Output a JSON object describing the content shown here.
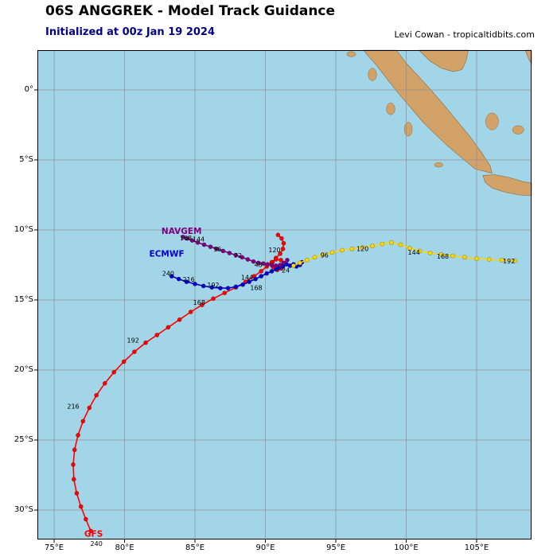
{
  "header": {
    "title": "06S ANGGREK - Model Track Guidance",
    "subtitle": "Initialized at 00z Jan 19 2024",
    "credit": "Levi Cowan - tropicaltidbits.com"
  },
  "colors": {
    "ocean": "#a3d5e8",
    "land": "#d2a269",
    "land_edge": "#8a6a3d",
    "grid": "#8f8f8f",
    "frame": "#000000",
    "hour_label": "#000000",
    "subtitle": "#00008b",
    "gfs": "#ff0000",
    "ecmwf": "#0000d0",
    "navgem": "#800080",
    "yellow": "#ffd700"
  },
  "chart_data": {
    "type": "line",
    "title": "06S ANGGREK - Model Track Guidance",
    "subtitle": "Initialized at 00z Jan 19 2024",
    "xlabel": "Longitude",
    "ylabel": "Latitude",
    "grid": true,
    "bounds": {
      "lon_min": 73.81,
      "lon_max": 108.9,
      "lat_max": 2.84,
      "lat_min": -32.1
    },
    "x_axis": {
      "ticks": [
        75,
        80,
        85,
        90,
        95,
        100,
        105
      ],
      "labels": [
        "75°E",
        "80°E",
        "85°E",
        "90°E",
        "95°E",
        "100°E",
        "105°E"
      ]
    },
    "y_axis": {
      "ticks": [
        0,
        -5,
        -10,
        -15,
        -20,
        -25,
        -30
      ],
      "labels": [
        "0°",
        "5°S",
        "10°S",
        "15°S",
        "20°S",
        "25°S",
        "30°S"
      ]
    },
    "series": [
      {
        "id": "gfs",
        "name": "GFS",
        "color": "#ff0000",
        "name_label_pos": [
          77.8,
          -31.9
        ],
        "points": [
          [
            90.9,
            -10.35
          ],
          [
            91.15,
            -10.6
          ],
          [
            91.3,
            -10.95
          ],
          [
            91.25,
            -11.35
          ],
          [
            91.05,
            -11.7
          ],
          [
            90.75,
            -12.0
          ],
          [
            90.5,
            -12.3
          ],
          [
            90.55,
            -12.65
          ],
          [
            90.85,
            -12.85
          ],
          [
            91.15,
            -12.75
          ],
          [
            91.3,
            -12.45
          ],
          [
            91.1,
            -12.15
          ],
          [
            90.75,
            -12.1
          ],
          [
            90.45,
            -12.3
          ],
          [
            90.1,
            -12.6
          ],
          [
            89.7,
            -12.95
          ],
          [
            89.2,
            -13.3
          ],
          [
            88.6,
            -13.7
          ],
          [
            87.9,
            -14.1
          ],
          [
            87.1,
            -14.5
          ],
          [
            86.3,
            -14.9
          ],
          [
            85.5,
            -15.35
          ],
          [
            84.7,
            -15.85
          ],
          [
            83.9,
            -16.4
          ],
          [
            83.1,
            -16.95
          ],
          [
            82.3,
            -17.5
          ],
          [
            81.5,
            -18.05
          ],
          [
            80.7,
            -18.7
          ],
          [
            79.95,
            -19.4
          ],
          [
            79.25,
            -20.15
          ],
          [
            78.6,
            -20.95
          ],
          [
            78.0,
            -21.8
          ],
          [
            77.5,
            -22.7
          ],
          [
            77.05,
            -23.65
          ],
          [
            76.7,
            -24.65
          ],
          [
            76.45,
            -25.7
          ],
          [
            76.35,
            -26.75
          ],
          [
            76.4,
            -27.8
          ],
          [
            76.6,
            -28.8
          ],
          [
            76.9,
            -29.75
          ],
          [
            77.25,
            -30.65
          ],
          [
            77.6,
            -31.5
          ]
        ],
        "hour_labels": [
          [
            "120",
            90.65,
            -11.58
          ],
          [
            "168",
            85.3,
            -15.35
          ],
          [
            "192",
            80.6,
            -18.05
          ],
          [
            "216",
            76.35,
            -22.75
          ],
          [
            "240",
            78.0,
            -32.55
          ]
        ]
      },
      {
        "id": "ecmwf",
        "name": "ECMWF",
        "color": "#0000d0",
        "name_label_pos": [
          83.0,
          -11.9
        ],
        "points": [
          [
            92.6,
            -12.3
          ],
          [
            92.45,
            -12.5
          ],
          [
            92.2,
            -12.6
          ],
          [
            92.0,
            -12.45
          ],
          [
            91.75,
            -12.55
          ],
          [
            91.5,
            -12.45
          ],
          [
            91.25,
            -12.6
          ],
          [
            91.0,
            -12.7
          ],
          [
            90.75,
            -12.8
          ],
          [
            90.45,
            -12.95
          ],
          [
            90.1,
            -13.1
          ],
          [
            89.7,
            -13.3
          ],
          [
            89.3,
            -13.5
          ],
          [
            88.85,
            -13.7
          ],
          [
            88.4,
            -13.9
          ],
          [
            87.9,
            -14.05
          ],
          [
            87.35,
            -14.15
          ],
          [
            86.8,
            -14.15
          ],
          [
            86.2,
            -14.1
          ],
          [
            85.6,
            -14.0
          ],
          [
            85.0,
            -13.85
          ],
          [
            84.4,
            -13.7
          ],
          [
            83.85,
            -13.5
          ],
          [
            83.35,
            -13.3
          ]
        ],
        "hour_labels": [
          [
            "24",
            91.45,
            -13.05
          ],
          [
            "144",
            88.7,
            -13.55
          ],
          [
            "168",
            89.35,
            -14.3
          ],
          [
            "192",
            86.3,
            -14.1
          ],
          [
            "216",
            84.55,
            -13.68
          ],
          [
            "240",
            83.1,
            -13.28
          ]
        ]
      },
      {
        "id": "navgem",
        "name": "NAVGEM",
        "color": "#800080",
        "name_label_pos": [
          84.05,
          -10.28
        ],
        "points": [
          [
            91.55,
            -12.15
          ],
          [
            91.3,
            -12.35
          ],
          [
            91.05,
            -12.5
          ],
          [
            90.75,
            -12.55
          ],
          [
            90.45,
            -12.5
          ],
          [
            90.15,
            -12.45
          ],
          [
            89.85,
            -12.4
          ],
          [
            89.5,
            -12.35
          ],
          [
            89.15,
            -12.25
          ],
          [
            88.75,
            -12.1
          ],
          [
            88.35,
            -11.95
          ],
          [
            87.9,
            -11.8
          ],
          [
            87.45,
            -11.65
          ],
          [
            87.0,
            -11.5
          ],
          [
            86.55,
            -11.35
          ],
          [
            86.1,
            -11.2
          ],
          [
            85.65,
            -11.05
          ],
          [
            85.2,
            -10.9
          ],
          [
            84.8,
            -10.75
          ],
          [
            84.45,
            -10.6
          ],
          [
            84.15,
            -10.5
          ]
        ],
        "hour_labels": [
          [
            "48",
            89.5,
            -12.65
          ],
          [
            "72",
            88.05,
            -11.98
          ],
          [
            "96",
            86.6,
            -11.52
          ],
          [
            "144",
            85.25,
            -10.82
          ],
          [
            "168",
            84.35,
            -10.75
          ]
        ]
      },
      {
        "id": "yellow-model",
        "name": "",
        "color": "#ffd700",
        "name_label_pos": null,
        "points": [
          [
            92.0,
            -12.55
          ],
          [
            92.45,
            -12.35
          ],
          [
            92.95,
            -12.15
          ],
          [
            93.5,
            -11.95
          ],
          [
            94.1,
            -11.75
          ],
          [
            94.75,
            -11.6
          ],
          [
            95.45,
            -11.45
          ],
          [
            96.15,
            -11.35
          ],
          [
            96.9,
            -11.25
          ],
          [
            97.6,
            -11.15
          ],
          [
            98.3,
            -11.0
          ],
          [
            98.95,
            -10.9
          ],
          [
            99.6,
            -11.05
          ],
          [
            100.25,
            -11.3
          ],
          [
            100.95,
            -11.5
          ],
          [
            101.7,
            -11.65
          ],
          [
            102.5,
            -11.75
          ],
          [
            103.3,
            -11.85
          ],
          [
            104.15,
            -11.95
          ],
          [
            105.0,
            -12.05
          ],
          [
            105.9,
            -12.1
          ],
          [
            106.8,
            -12.15
          ],
          [
            107.7,
            -12.2
          ]
        ],
        "hour_labels": [
          [
            "96",
            94.2,
            -11.95
          ],
          [
            "120",
            96.9,
            -11.5
          ],
          [
            "144",
            100.55,
            -11.75
          ],
          [
            "168",
            102.6,
            -12.05
          ],
          [
            "192",
            107.3,
            -12.4
          ]
        ]
      }
    ],
    "land": [
      {
        "name": "sumatra",
        "points": [
          [
            97.0,
            2.84
          ],
          [
            99.3,
            2.84
          ],
          [
            100.0,
            1.9
          ],
          [
            100.9,
            0.95
          ],
          [
            101.8,
            -0.05
          ],
          [
            102.7,
            -1.1
          ],
          [
            103.6,
            -2.2
          ],
          [
            104.5,
            -3.3
          ],
          [
            105.3,
            -4.4
          ],
          [
            105.95,
            -5.4
          ],
          [
            106.1,
            -5.95
          ],
          [
            104.9,
            -5.65
          ],
          [
            104.0,
            -4.9
          ],
          [
            103.05,
            -4.1
          ],
          [
            102.1,
            -3.2
          ],
          [
            101.2,
            -2.3
          ],
          [
            100.35,
            -1.3
          ],
          [
            99.5,
            -0.3
          ],
          [
            98.7,
            0.7
          ],
          [
            97.9,
            1.75
          ],
          [
            97.15,
            2.6
          ]
        ]
      },
      {
        "name": "malay-peninsula",
        "points": [
          [
            100.9,
            2.84
          ],
          [
            101.7,
            2.05
          ],
          [
            102.5,
            1.55
          ],
          [
            103.35,
            1.3
          ],
          [
            103.95,
            1.45
          ],
          [
            104.25,
            2.05
          ],
          [
            104.4,
            2.84
          ]
        ]
      },
      {
        "name": "borneo-corner",
        "points": [
          [
            108.45,
            2.84
          ],
          [
            108.7,
            2.2
          ],
          [
            108.9,
            1.85
          ],
          [
            108.9,
            2.84
          ]
        ]
      },
      {
        "name": "java-west",
        "points": [
          [
            105.45,
            -6.1
          ],
          [
            106.3,
            -6.05
          ],
          [
            107.3,
            -6.25
          ],
          [
            108.3,
            -6.55
          ],
          [
            108.9,
            -6.65
          ],
          [
            108.9,
            -7.55
          ],
          [
            108.0,
            -7.5
          ],
          [
            107.0,
            -7.3
          ],
          [
            106.1,
            -7.0
          ],
          [
            105.6,
            -6.6
          ]
        ]
      }
    ],
    "islands": [
      {
        "name": "simeulue",
        "lon": 96.1,
        "lat": 2.55,
        "rx": 0.32,
        "ry": 0.18
      },
      {
        "name": "nias",
        "lon": 97.6,
        "lat": 1.1,
        "rx": 0.3,
        "ry": 0.45
      },
      {
        "name": "siberut",
        "lon": 98.9,
        "lat": -1.35,
        "rx": 0.3,
        "ry": 0.42
      },
      {
        "name": "sipora-pagai",
        "lon": 100.15,
        "lat": -2.8,
        "rx": 0.28,
        "ry": 0.5
      },
      {
        "name": "enggano",
        "lon": 102.3,
        "lat": -5.35,
        "rx": 0.3,
        "ry": 0.16
      },
      {
        "name": "bangka",
        "lon": 106.1,
        "lat": -2.25,
        "rx": 0.45,
        "ry": 0.6
      },
      {
        "name": "belitung",
        "lon": 107.95,
        "lat": -2.85,
        "rx": 0.4,
        "ry": 0.3
      }
    ]
  }
}
